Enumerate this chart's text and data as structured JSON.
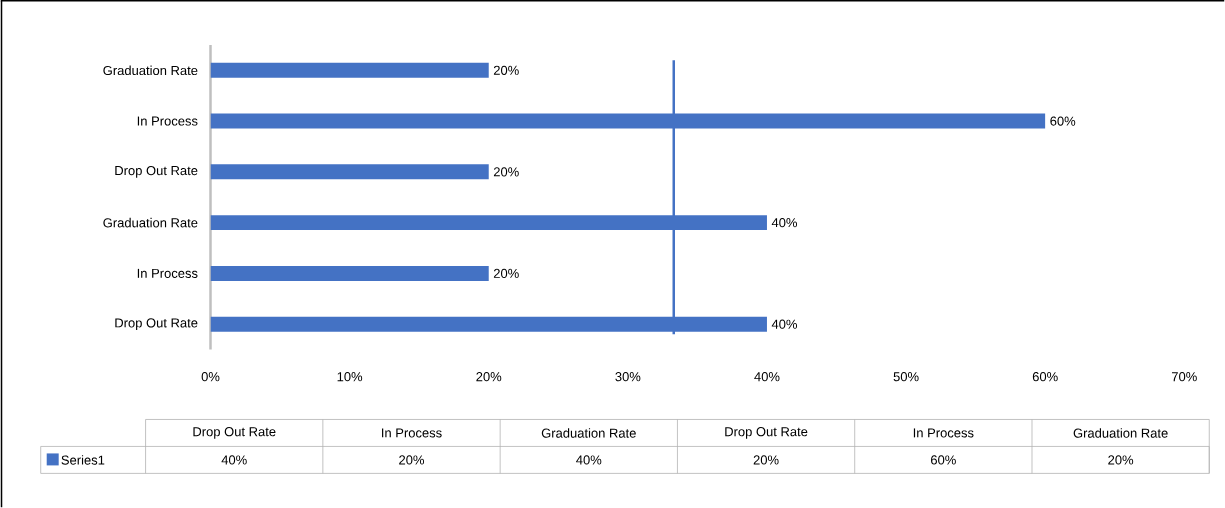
{
  "chart_data": {
    "type": "bar",
    "orientation": "horizontal",
    "categories": [
      "Graduation Rate",
      "In Process",
      "Drop Out Rate",
      "Graduation Rate",
      "In Process",
      "Drop Out Rate"
    ],
    "series": [
      {
        "name": "Series1",
        "color": "#4472c4",
        "values": [
          20,
          60,
          20,
          40,
          20,
          40
        ],
        "value_labels": [
          "20%",
          "60%",
          "20%",
          "40%",
          "20%",
          "40%"
        ]
      }
    ],
    "xlim": [
      0,
      70
    ],
    "xticks": [
      {
        "value": 0,
        "label": "0%"
      },
      {
        "value": 10,
        "label": "10%"
      },
      {
        "value": 20,
        "label": "20%"
      },
      {
        "value": 30,
        "label": "30%"
      },
      {
        "value": 40,
        "label": "40%"
      },
      {
        "value": 50,
        "label": "50%"
      },
      {
        "value": 60,
        "label": "60%"
      },
      {
        "value": 70,
        "label": "70%"
      }
    ],
    "ref_lines": [
      {
        "axis": "x",
        "value": 33.3,
        "color": "#4472c4"
      }
    ],
    "legend": "bottom",
    "grid": false
  }
}
